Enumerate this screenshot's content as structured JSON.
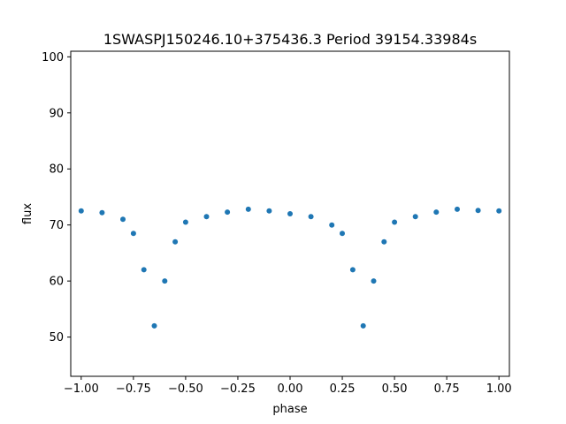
{
  "chart_data": {
    "type": "scatter",
    "title": "1SWASPJ150246.10+375436.3 Period 39154.33984s",
    "xlabel": "phase",
    "ylabel": "flux",
    "xlim": [
      -1.05,
      1.05
    ],
    "ylim": [
      43,
      101
    ],
    "xticks": [
      -1.0,
      -0.75,
      -0.5,
      -0.25,
      0.0,
      0.25,
      0.5,
      0.75,
      1.0
    ],
    "xtick_labels": [
      "−1.00",
      "−0.75",
      "−0.50",
      "−0.25",
      "0.00",
      "0.25",
      "0.50",
      "0.75",
      "1.00"
    ],
    "yticks": [
      50,
      60,
      70,
      80,
      90,
      100
    ],
    "ytick_labels": [
      "50",
      "60",
      "70",
      "80",
      "90",
      "100"
    ],
    "grid": false,
    "series": [
      {
        "color": "#1f77b4",
        "description_points_phase_flux": [
          [
            -1.0,
            72.5
          ],
          [
            -0.9,
            72.2
          ],
          [
            -0.8,
            71.0
          ],
          [
            -0.75,
            68.5
          ],
          [
            -0.7,
            62.0
          ],
          [
            -0.65,
            52.0
          ],
          [
            -0.6,
            60.0
          ],
          [
            -0.55,
            67.0
          ],
          [
            -0.5,
            70.5
          ],
          [
            -0.4,
            71.5
          ],
          [
            -0.3,
            72.3
          ],
          [
            -0.2,
            72.8
          ],
          [
            -0.1,
            72.5
          ],
          [
            0.0,
            72.0
          ],
          [
            0.1,
            71.5
          ],
          [
            0.2,
            70.0
          ],
          [
            0.25,
            68.5
          ],
          [
            0.3,
            62.0
          ],
          [
            0.35,
            52.0
          ],
          [
            0.4,
            60.0
          ],
          [
            0.45,
            67.0
          ],
          [
            0.5,
            70.5
          ],
          [
            0.6,
            71.5
          ],
          [
            0.7,
            72.3
          ],
          [
            0.8,
            72.8
          ],
          [
            0.9,
            72.6
          ],
          [
            1.0,
            72.5
          ]
        ]
      }
    ]
  }
}
